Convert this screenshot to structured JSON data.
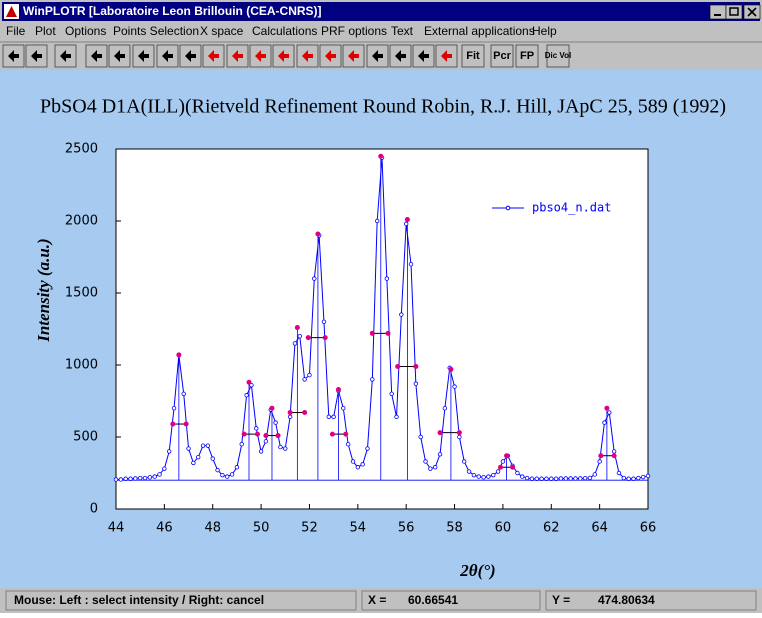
{
  "window": {
    "title": "WinPLOTR [Laboratoire Leon Brillouin (CEA-CNRS)]"
  },
  "menu": [
    "File",
    "Plot",
    "Options",
    "Points Selection",
    "X space",
    "Calculations",
    "PRF options",
    "Text",
    "External applications",
    "Help"
  ],
  "toolbar": [
    "Fit",
    "Pcr",
    "FP",
    "Dic Vol"
  ],
  "status": {
    "hint": "Mouse: Left : select intensity / Right: cancel",
    "x_label": "X =",
    "x_value": "60.66541",
    "y_label": "Y =",
    "y_value": "474.80634"
  },
  "chart_data": {
    "type": "line",
    "title": "PbSO4 D1A(ILL)(Rietveld Refinement Round Robin, R.J. Hill, JApC 25, 589 (1992)",
    "x_label": "2θ(°)",
    "y_label": "Intensity (a.u.)",
    "xlim": [
      44,
      66
    ],
    "ylim": [
      0,
      2500
    ],
    "xticks": [
      44,
      46,
      48,
      50,
      52,
      54,
      56,
      58,
      60,
      62,
      64,
      66
    ],
    "yticks": [
      0,
      500,
      1000,
      1500,
      2000,
      2500
    ],
    "legend": "upper right",
    "series": [
      {
        "name": "pbso4_n.dat",
        "color": "#0000ff",
        "x": [
          44.0,
          44.2,
          44.4,
          44.6,
          44.8,
          45.0,
          45.2,
          45.4,
          45.6,
          45.8,
          46.0,
          46.2,
          46.4,
          46.6,
          46.8,
          47.0,
          47.2,
          47.4,
          47.6,
          47.8,
          48.0,
          48.2,
          48.4,
          48.6,
          48.8,
          49.0,
          49.2,
          49.4,
          49.6,
          49.8,
          50.0,
          50.2,
          50.4,
          50.6,
          50.8,
          51.0,
          51.2,
          51.4,
          51.6,
          51.8,
          52.0,
          52.2,
          52.4,
          52.6,
          52.8,
          53.0,
          53.2,
          53.4,
          53.6,
          53.8,
          54.0,
          54.2,
          54.4,
          54.6,
          54.8,
          55.0,
          55.2,
          55.4,
          55.6,
          55.8,
          56.0,
          56.2,
          56.4,
          56.6,
          56.8,
          57.0,
          57.2,
          57.4,
          57.6,
          57.8,
          58.0,
          58.2,
          58.4,
          58.6,
          58.8,
          59.0,
          59.2,
          59.4,
          59.6,
          59.8,
          60.0,
          60.2,
          60.4,
          60.6,
          60.8,
          61.0,
          61.2,
          61.4,
          61.6,
          61.8,
          62.0,
          62.2,
          62.4,
          62.6,
          62.8,
          63.0,
          63.2,
          63.4,
          63.6,
          63.8,
          64.0,
          64.2,
          64.4,
          64.6,
          64.8,
          65.0,
          65.2,
          65.4,
          65.6,
          65.8,
          66.0
        ],
        "values": [
          205,
          205,
          210,
          210,
          212,
          215,
          215,
          220,
          225,
          240,
          280,
          400,
          700,
          1070,
          800,
          420,
          320,
          360,
          440,
          440,
          350,
          270,
          235,
          225,
          240,
          290,
          450,
          790,
          860,
          560,
          400,
          470,
          690,
          600,
          430,
          420,
          640,
          1150,
          1200,
          900,
          930,
          1600,
          1900,
          1300,
          640,
          640,
          820,
          700,
          450,
          330,
          290,
          310,
          420,
          900,
          2000,
          2440,
          1600,
          800,
          640,
          1350,
          1980,
          1700,
          870,
          500,
          330,
          280,
          290,
          380,
          700,
          980,
          850,
          500,
          330,
          260,
          235,
          225,
          220,
          225,
          235,
          260,
          330,
          370,
          300,
          250,
          225,
          215,
          210,
          210,
          210,
          210,
          210,
          210,
          212,
          212,
          212,
          212,
          212,
          214,
          216,
          240,
          330,
          600,
          670,
          400,
          250,
          215,
          210,
          210,
          215,
          222,
          230
        ]
      }
    ],
    "peaks": {
      "color": "#e0007f",
      "baseline": 200,
      "x": [
        46.6,
        49.5,
        50.45,
        51.5,
        52.35,
        53.2,
        54.95,
        56.05,
        57.85,
        60.15,
        64.3
      ],
      "values": [
        1070,
        880,
        700,
        1260,
        1910,
        830,
        2450,
        2010,
        970,
        370,
        700
      ],
      "half_values": [
        590,
        520,
        510,
        670,
        1190,
        520,
        1220,
        990,
        530,
        290,
        370
      ],
      "half_left": [
        46.35,
        49.3,
        50.2,
        51.2,
        51.95,
        52.95,
        54.6,
        55.65,
        57.4,
        59.9,
        64.05
      ],
      "half_right": [
        46.9,
        49.85,
        50.7,
        51.8,
        52.65,
        53.5,
        55.25,
        56.4,
        58.2,
        60.4,
        64.6
      ]
    }
  }
}
